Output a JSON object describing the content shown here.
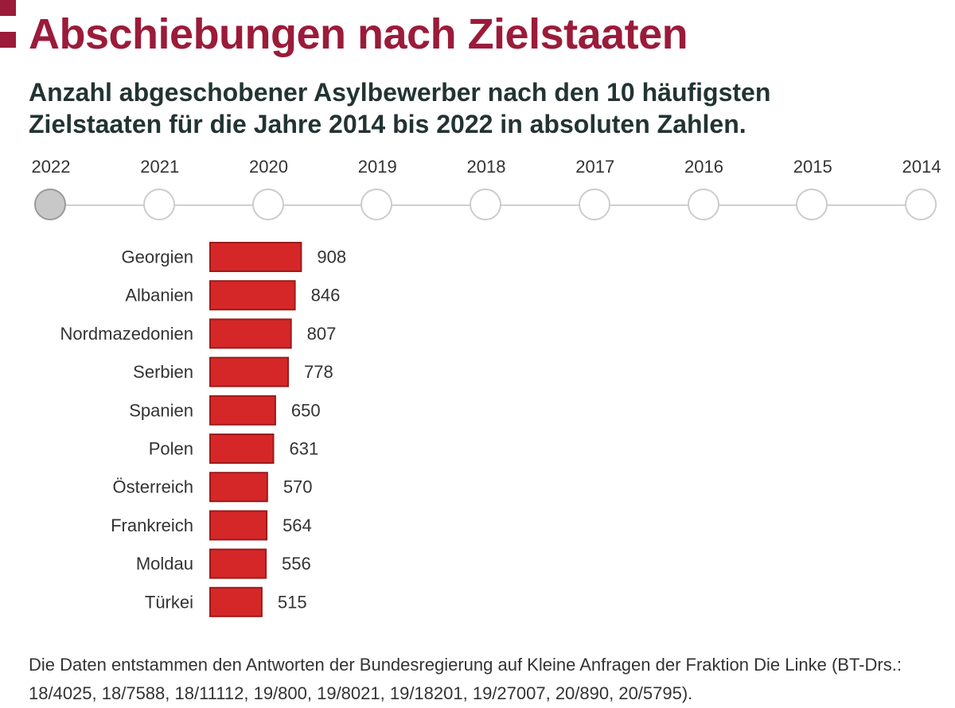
{
  "header": {
    "title": "Abschiebungen nach Zielstaaten",
    "subtitle": "Anzahl abgeschobener Asylbewerber nach den 10 häufigsten Zielstaaten für die Jahre 2014 bis 2022 in absoluten Zahlen."
  },
  "timeline": {
    "active_year": "2022",
    "years": [
      "2022",
      "2021",
      "2020",
      "2019",
      "2018",
      "2017",
      "2016",
      "2015",
      "2014"
    ]
  },
  "chart_data": {
    "type": "bar",
    "orientation": "horizontal",
    "categories": [
      "Georgien",
      "Albanien",
      "Nordmazedonien",
      "Serbien",
      "Spanien",
      "Polen",
      "Österreich",
      "Frankreich",
      "Moldau",
      "Türkei"
    ],
    "values": [
      908,
      846,
      807,
      778,
      650,
      631,
      570,
      564,
      556,
      515
    ],
    "data_labels": true,
    "grid": false,
    "legend": "none"
  },
  "colors": {
    "bar_fill": "#d62728",
    "bar_stroke": "#9b1b1b",
    "title": "#9b1b3a",
    "subtitle": "#233333",
    "timeline_active": "#c8c8c8"
  },
  "footer": {
    "source": "Die Daten entstammen den Antworten der Bundesregierung auf Kleine Anfragen der Fraktion Die Linke (BT-Drs.: 18/4025, 18/7588, 18/11112, 19/800, 19/8021, 19/18201, 19/27007, 20/890, 20/5795)."
  }
}
